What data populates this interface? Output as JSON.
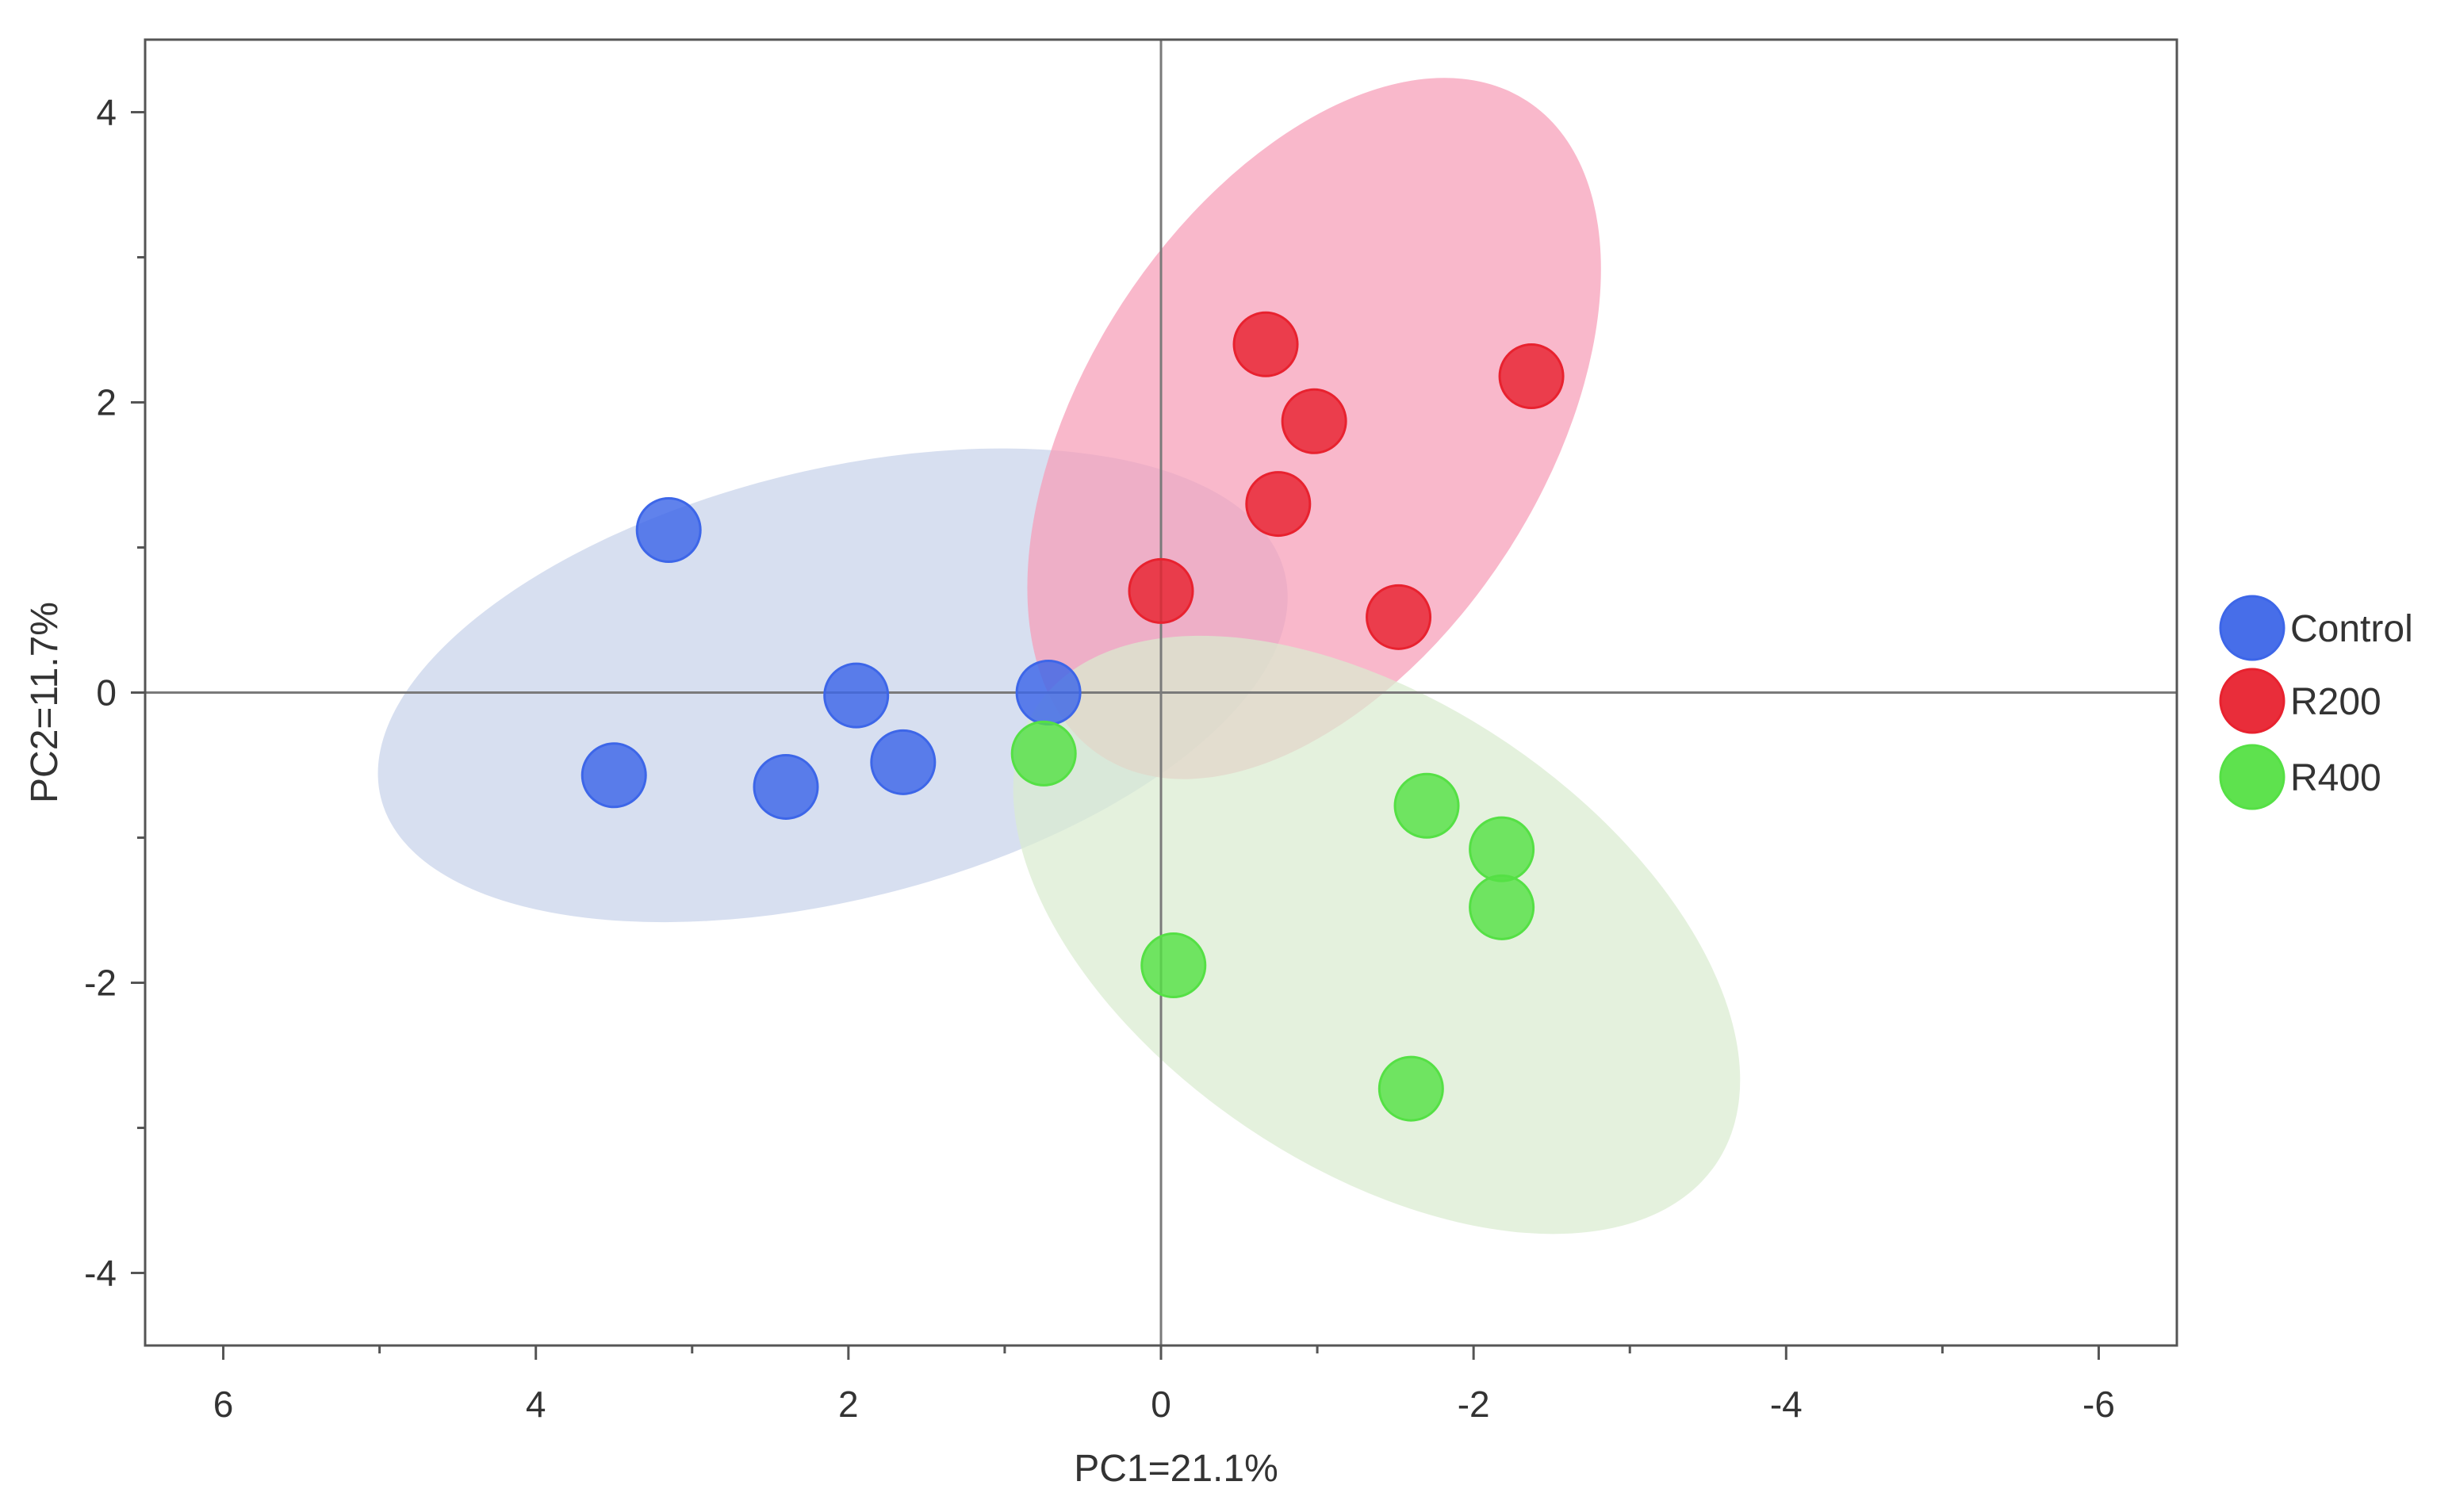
{
  "chart_data": {
    "type": "scatter",
    "title": "",
    "xlabel": "PC1=21.1%",
    "ylabel": "PC2=11.7%",
    "xlim": [
      6.5,
      -6.5
    ],
    "ylim": [
      -4.5,
      4.5
    ],
    "x_axis_reversed": true,
    "grid": false,
    "reference_lines": {
      "x": 0,
      "y": 0
    },
    "x_ticks": [
      6,
      4,
      2,
      0,
      -2,
      -4,
      -6
    ],
    "x_tick_labels": [
      "6",
      "4",
      "2",
      "0",
      "-2",
      "-4",
      "-6"
    ],
    "y_ticks": [
      4,
      2,
      0,
      -2,
      -4
    ],
    "y_tick_labels": [
      "4",
      "2",
      "0",
      "-2",
      "-4"
    ],
    "legend_position": "right",
    "series": [
      {
        "name": "Control",
        "color": "#3d66e8",
        "ellipse_color": "#c7d2ea",
        "ellipse": {
          "cx": 2.1,
          "cy": 0.05,
          "rx": 2.98,
          "ry": 1.48,
          "angle_deg": 14
        },
        "x": [
          3.15,
          1.95,
          0.72,
          3.5,
          2.4,
          1.65
        ],
        "y": [
          1.12,
          -0.02,
          0.0,
          -0.57,
          -0.65,
          -0.48
        ]
      },
      {
        "name": "R200",
        "color": "#e8222f",
        "ellipse_color": "#f79db7",
        "ellipse": {
          "cx": -0.98,
          "cy": 1.82,
          "rx": 2.5,
          "ry": 1.58,
          "angle_deg": 57
        },
        "x": [
          -0.67,
          -2.37,
          -0.98,
          -0.75,
          0.0,
          -1.52
        ],
        "y": [
          2.4,
          2.18,
          1.87,
          1.3,
          0.7,
          0.52
        ]
      },
      {
        "name": "R400",
        "color": "#55e045",
        "ellipse_color": "#d9ecd0",
        "ellipse": {
          "cx": -1.38,
          "cy": -1.67,
          "rx": 2.62,
          "ry": 1.6,
          "angle_deg": -34
        },
        "x": [
          0.75,
          -1.7,
          -2.18,
          -2.18,
          -0.08,
          -1.6
        ],
        "y": [
          -0.42,
          -0.78,
          -1.08,
          -1.48,
          -1.88,
          -2.73
        ]
      }
    ]
  }
}
